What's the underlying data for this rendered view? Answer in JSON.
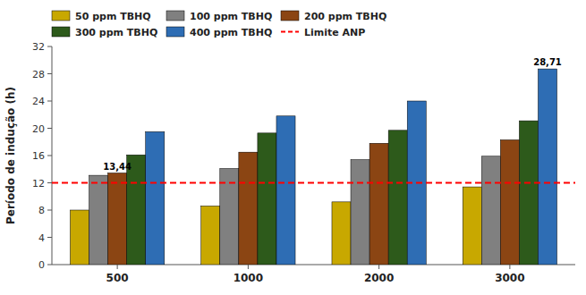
{
  "chart_data": {
    "type": "bar",
    "ylabel": "Período de indução (h)",
    "categories": [
      "500",
      "1000",
      "2000",
      "3000"
    ],
    "series": [
      {
        "name": "50 ppm TBHQ",
        "color": "#c8a800",
        "values": [
          8.0,
          8.6,
          9.2,
          11.4
        ]
      },
      {
        "name": "100 ppm TBHQ",
        "color": "#808080",
        "values": [
          13.1,
          14.1,
          15.4,
          15.9
        ]
      },
      {
        "name": "200 ppm TBHQ",
        "color": "#8b4513",
        "values": [
          13.44,
          16.5,
          17.8,
          18.3
        ],
        "value_labels": [
          "13,44",
          null,
          null,
          null
        ]
      },
      {
        "name": "300 ppm TBHQ",
        "color": "#2d5a1b",
        "values": [
          16.1,
          19.3,
          19.7,
          21.1
        ]
      },
      {
        "name": "400 ppm TBHQ",
        "color": "#2e6db4",
        "values": [
          19.5,
          21.8,
          24.0,
          28.71
        ],
        "value_labels": [
          null,
          null,
          null,
          "28,71"
        ]
      }
    ],
    "reference_lines": [
      {
        "name": "Limite ANP",
        "value": 12.0,
        "color": "#ff0000",
        "line_style": "dashed"
      }
    ],
    "ylim": [
      0,
      32
    ],
    "yticks": [
      0,
      4,
      8,
      12,
      16,
      20,
      24,
      28,
      32
    ],
    "grid": false,
    "legend": "upper left",
    "background_color": "#ffffff"
  }
}
